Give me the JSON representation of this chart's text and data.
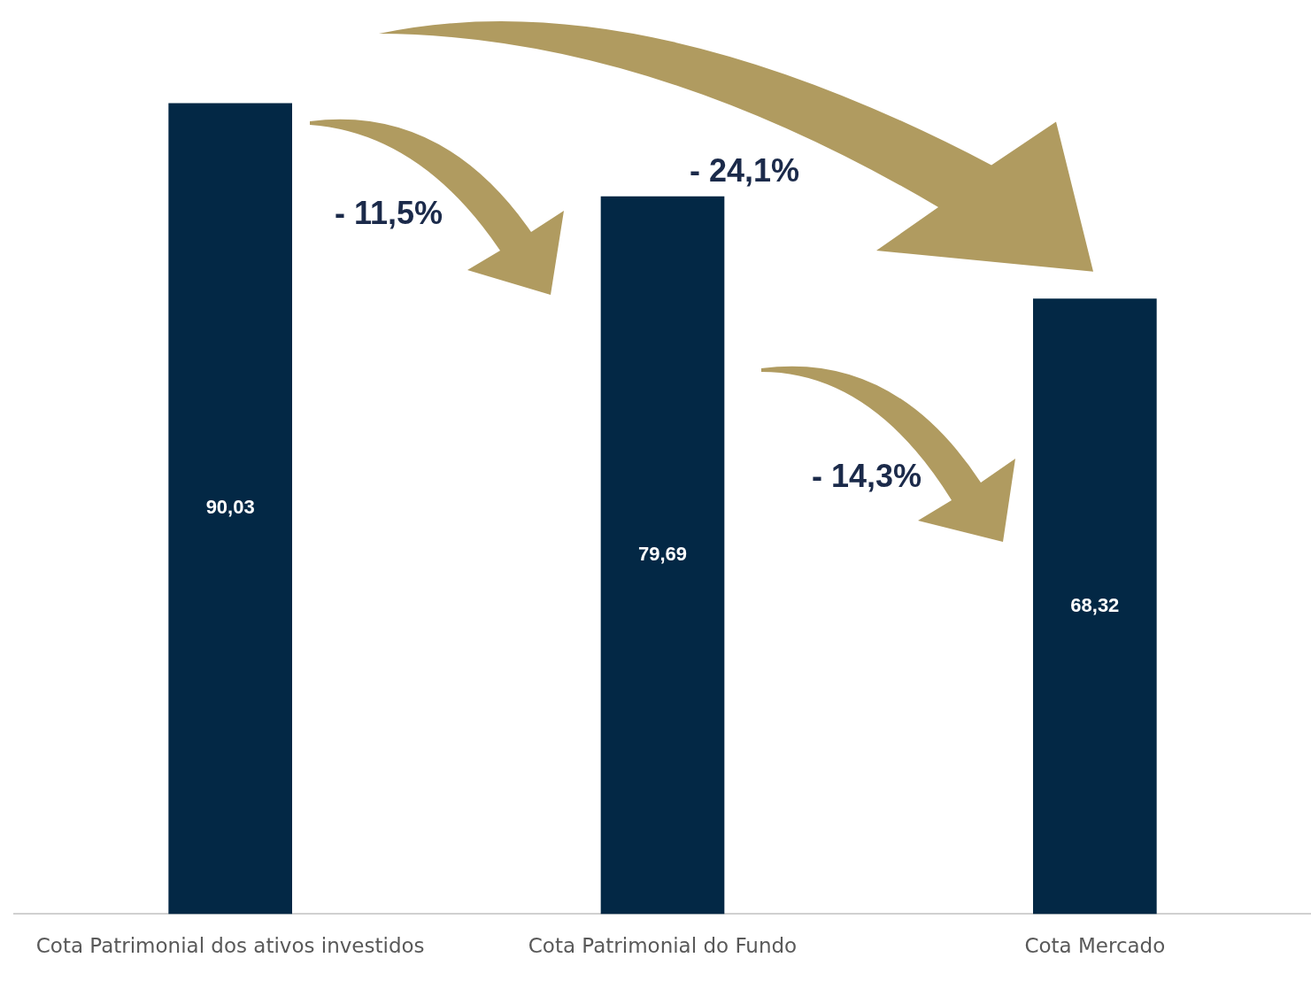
{
  "chart_data": {
    "type": "bar",
    "categories": [
      "Cota Patrimonial dos ativos investidos",
      "Cota Patrimonial do Fundo",
      "Cota Mercado"
    ],
    "values": [
      90.03,
      79.69,
      68.32
    ],
    "value_labels": [
      "90,03",
      "79,69",
      "68,32"
    ],
    "color": "#032845",
    "tick_labels": "x",
    "grid": false,
    "legend": false,
    "annotations": [
      "- 11,5%",
      "- 24,1%",
      "- 14,3%"
    ]
  }
}
